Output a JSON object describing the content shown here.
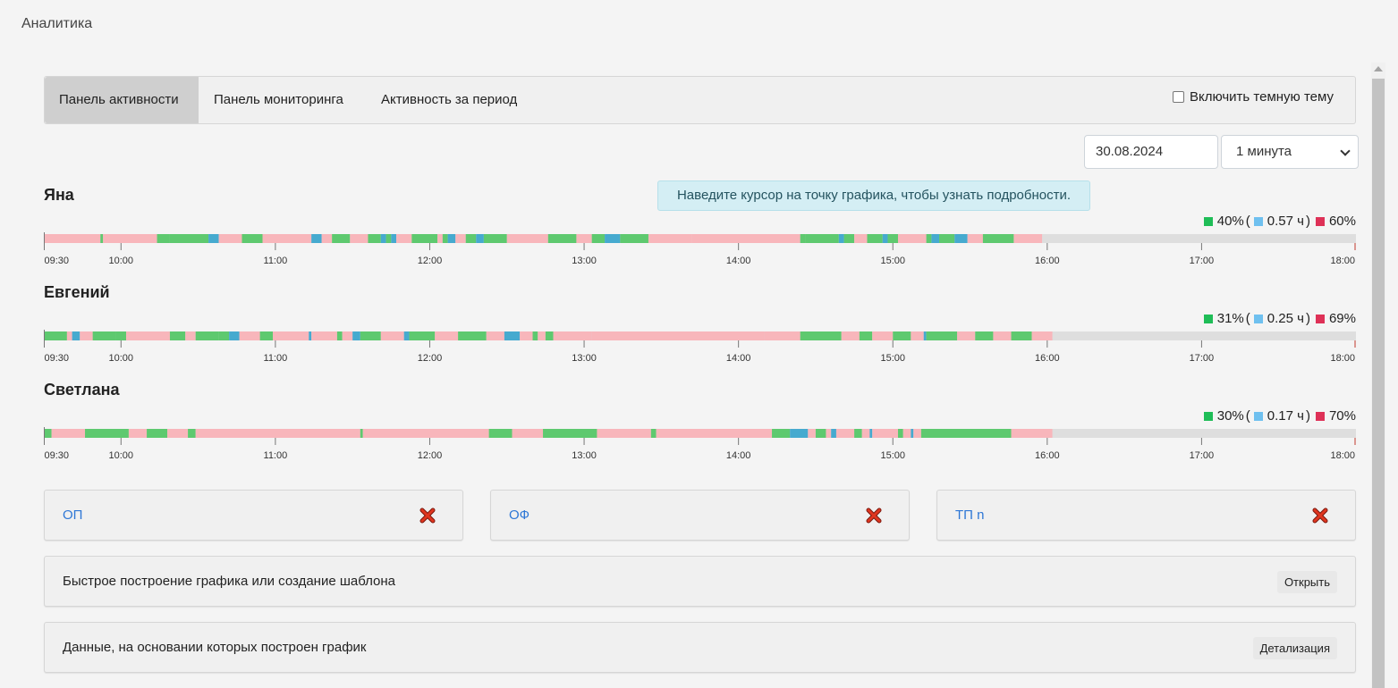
{
  "page": {
    "title": "Аналитика"
  },
  "tabs": [
    {
      "label": "Панель активности",
      "active": true
    },
    {
      "label": "Панель мониторинга",
      "active": false
    },
    {
      "label": "Активность за период",
      "active": false
    }
  ],
  "theme_toggle": {
    "label": "Включить темную тему",
    "checked": false
  },
  "filters": {
    "date": "30.08.2024",
    "interval": "1 минута"
  },
  "hint": "Наведите курсор на точку графика, чтобы узнать подробности.",
  "colors": {
    "active": "#5ec96f",
    "idle": "#f8b6bb",
    "away": "#46aacf",
    "no_data": "#dedede",
    "legend_active": "#1fbd57",
    "legend_idle": "#6fc0ef",
    "legend_away": "#de3157"
  },
  "axis": {
    "start": "09:30",
    "end": "18:00",
    "ticks": [
      "09:30",
      "10:00",
      "11:00",
      "12:00",
      "13:00",
      "14:00",
      "15:00",
      "16:00",
      "17:00",
      "18:00"
    ]
  },
  "persons": [
    {
      "name": "Яна",
      "active_pct": "40%",
      "idle_hours": "0.57 ч",
      "inactive_pct": "60%",
      "segments": [
        [
          "09:30",
          "09:52",
          "i"
        ],
        [
          "09:52",
          "09:53",
          "a"
        ],
        [
          "09:53",
          "10:14",
          "i"
        ],
        [
          "10:14",
          "10:19",
          "a"
        ],
        [
          "10:19",
          "10:34",
          "a"
        ],
        [
          "10:34",
          "10:38",
          "w"
        ],
        [
          "10:38",
          "10:47",
          "i"
        ],
        [
          "10:47",
          "10:55",
          "a"
        ],
        [
          "10:55",
          "11:14",
          "i"
        ],
        [
          "11:14",
          "11:18",
          "w"
        ],
        [
          "11:18",
          "11:22",
          "i"
        ],
        [
          "11:22",
          "11:29",
          "a"
        ],
        [
          "11:29",
          "11:36",
          "i"
        ],
        [
          "11:36",
          "11:41",
          "a"
        ],
        [
          "11:41",
          "11:43",
          "w"
        ],
        [
          "11:43",
          "11:45",
          "a"
        ],
        [
          "11:45",
          "11:47",
          "w"
        ],
        [
          "11:47",
          "11:53",
          "i"
        ],
        [
          "11:53",
          "12:03",
          "a"
        ],
        [
          "12:03",
          "12:05",
          "i"
        ],
        [
          "12:05",
          "12:07",
          "a"
        ],
        [
          "12:07",
          "12:10",
          "w"
        ],
        [
          "12:10",
          "12:14",
          "i"
        ],
        [
          "12:14",
          "12:18",
          "a"
        ],
        [
          "12:18",
          "12:21",
          "w"
        ],
        [
          "12:21",
          "12:30",
          "a"
        ],
        [
          "12:30",
          "12:46",
          "i"
        ],
        [
          "12:46",
          "12:57",
          "a"
        ],
        [
          "12:57",
          "13:03",
          "i"
        ],
        [
          "13:03",
          "13:08",
          "a"
        ],
        [
          "13:08",
          "13:14",
          "w"
        ],
        [
          "13:14",
          "13:25",
          "a"
        ],
        [
          "13:25",
          "13:42",
          "i"
        ],
        [
          "13:42",
          "14:24",
          "i"
        ],
        [
          "14:24",
          "14:26",
          "a"
        ],
        [
          "14:26",
          "14:39",
          "a"
        ],
        [
          "14:39",
          "14:41",
          "w"
        ],
        [
          "14:41",
          "14:45",
          "a"
        ],
        [
          "14:45",
          "14:50",
          "i"
        ],
        [
          "14:50",
          "14:56",
          "a"
        ],
        [
          "14:56",
          "14:58",
          "w"
        ],
        [
          "14:58",
          "15:02",
          "a"
        ],
        [
          "15:02",
          "15:13",
          "i"
        ],
        [
          "15:13",
          "15:15",
          "a"
        ],
        [
          "15:15",
          "15:18",
          "w"
        ],
        [
          "15:18",
          "15:24",
          "a"
        ],
        [
          "15:24",
          "15:29",
          "w"
        ],
        [
          "15:29",
          "15:35",
          "i"
        ],
        [
          "15:35",
          "15:47",
          "a"
        ],
        [
          "15:47",
          "15:58",
          "i"
        ]
      ]
    },
    {
      "name": "Евгений",
      "active_pct": "31%",
      "idle_hours": "0.25 ч",
      "inactive_pct": "69%",
      "segments": [
        [
          "09:30",
          "09:39",
          "a"
        ],
        [
          "09:39",
          "09:41",
          "i"
        ],
        [
          "09:41",
          "09:44",
          "w"
        ],
        [
          "09:44",
          "09:49",
          "i"
        ],
        [
          "09:49",
          "09:58",
          "a"
        ],
        [
          "09:58",
          "10:02",
          "a"
        ],
        [
          "10:02",
          "10:19",
          "i"
        ],
        [
          "10:19",
          "10:25",
          "a"
        ],
        [
          "10:25",
          "10:29",
          "i"
        ],
        [
          "10:29",
          "10:38",
          "a"
        ],
        [
          "10:38",
          "10:42",
          "a"
        ],
        [
          "10:42",
          "10:46",
          "w"
        ],
        [
          "10:46",
          "10:54",
          "i"
        ],
        [
          "10:54",
          "10:59",
          "a"
        ],
        [
          "10:59",
          "11:13",
          "i"
        ],
        [
          "11:13",
          "11:14",
          "w"
        ],
        [
          "11:14",
          "11:24",
          "i"
        ],
        [
          "11:24",
          "11:26",
          "a"
        ],
        [
          "11:26",
          "11:30",
          "i"
        ],
        [
          "11:30",
          "11:33",
          "w"
        ],
        [
          "11:33",
          "11:41",
          "a"
        ],
        [
          "11:41",
          "11:50",
          "i"
        ],
        [
          "11:50",
          "11:52",
          "w"
        ],
        [
          "11:52",
          "12:02",
          "a"
        ],
        [
          "12:02",
          "12:11",
          "i"
        ],
        [
          "12:11",
          "12:22",
          "a"
        ],
        [
          "12:22",
          "12:29",
          "i"
        ],
        [
          "12:29",
          "12:35",
          "w"
        ],
        [
          "12:35",
          "12:40",
          "i"
        ],
        [
          "12:40",
          "12:42",
          "a"
        ],
        [
          "12:42",
          "12:45",
          "i"
        ],
        [
          "12:45",
          "12:48",
          "a"
        ],
        [
          "12:48",
          "13:03",
          "i"
        ],
        [
          "13:03",
          "14:10",
          "i"
        ],
        [
          "14:10",
          "14:24",
          "i"
        ],
        [
          "14:24",
          "14:40",
          "a"
        ],
        [
          "14:40",
          "14:47",
          "i"
        ],
        [
          "14:47",
          "14:52",
          "a"
        ],
        [
          "14:52",
          "15:00",
          "i"
        ],
        [
          "15:00",
          "15:07",
          "a"
        ],
        [
          "15:07",
          "15:12",
          "i"
        ],
        [
          "15:12",
          "15:13",
          "w"
        ],
        [
          "15:13",
          "15:25",
          "a"
        ],
        [
          "15:25",
          "15:32",
          "i"
        ],
        [
          "15:32",
          "15:39",
          "a"
        ],
        [
          "15:39",
          "15:46",
          "i"
        ],
        [
          "15:46",
          "15:54",
          "a"
        ],
        [
          "15:54",
          "16:02",
          "i"
        ]
      ]
    },
    {
      "name": "Светлана",
      "active_pct": "30%",
      "idle_hours": "0.17 ч",
      "inactive_pct": "70%",
      "segments": [
        [
          "09:30",
          "09:33",
          "a"
        ],
        [
          "09:33",
          "09:46",
          "i"
        ],
        [
          "09:46",
          "10:03",
          "a"
        ],
        [
          "10:03",
          "10:10",
          "i"
        ],
        [
          "10:10",
          "10:18",
          "a"
        ],
        [
          "10:18",
          "10:26",
          "i"
        ],
        [
          "10:26",
          "10:29",
          "a"
        ],
        [
          "10:29",
          "11:33",
          "i"
        ],
        [
          "11:33",
          "11:34",
          "a"
        ],
        [
          "11:34",
          "12:23",
          "i"
        ],
        [
          "12:23",
          "12:32",
          "a"
        ],
        [
          "12:32",
          "12:44",
          "i"
        ],
        [
          "12:44",
          "13:05",
          "a"
        ],
        [
          "13:05",
          "13:26",
          "i"
        ],
        [
          "13:26",
          "13:28",
          "a"
        ],
        [
          "13:28",
          "14:13",
          "i"
        ],
        [
          "14:13",
          "14:20",
          "a"
        ],
        [
          "14:20",
          "14:27",
          "w"
        ],
        [
          "14:27",
          "14:30",
          "i"
        ],
        [
          "14:30",
          "14:34",
          "a"
        ],
        [
          "14:34",
          "14:36",
          "i"
        ],
        [
          "14:36",
          "14:38",
          "w"
        ],
        [
          "14:38",
          "14:45",
          "i"
        ],
        [
          "14:45",
          "14:48",
          "a"
        ],
        [
          "14:48",
          "14:51",
          "i"
        ],
        [
          "14:51",
          "14:52",
          "w"
        ],
        [
          "14:52",
          "15:02",
          "i"
        ],
        [
          "15:02",
          "15:04",
          "a"
        ],
        [
          "15:04",
          "15:07",
          "i"
        ],
        [
          "15:07",
          "15:08",
          "w"
        ],
        [
          "15:08",
          "15:11",
          "i"
        ],
        [
          "15:11",
          "15:46",
          "a"
        ],
        [
          "15:46",
          "16:02",
          "i"
        ]
      ]
    }
  ],
  "quick_cards": [
    {
      "label": "ОП"
    },
    {
      "label": "ОФ"
    },
    {
      "label": "ТП n"
    }
  ],
  "sections": [
    {
      "label": "Быстрое построение графика или создание шаблона",
      "button": "Открыть"
    },
    {
      "label": "Данные, на основании которых построен график",
      "button": "Детализация"
    }
  ]
}
